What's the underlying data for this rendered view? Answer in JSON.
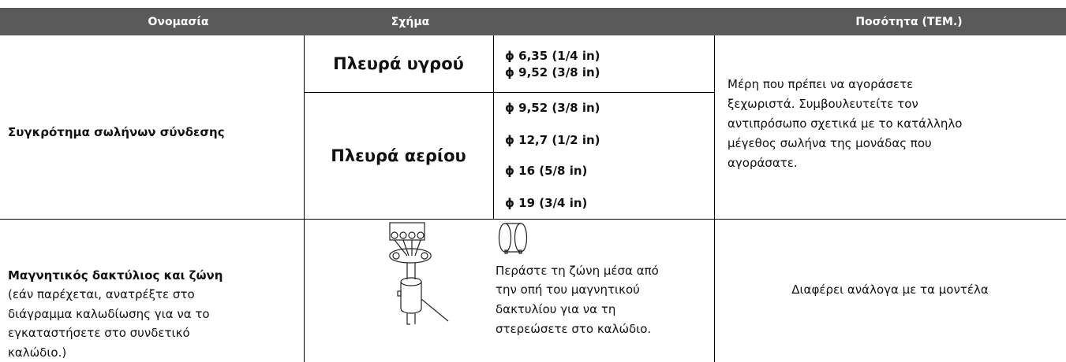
{
  "table": {
    "headers": [
      "Ονομασία",
      "Σχήμα",
      "Ποσότητα (ΤΕΜ.)"
    ],
    "rows": [
      {
        "name": "Συγκρότημα σωλήνων σύνδεσης",
        "groups": [
          {
            "label": "Πλευρά υγρού",
            "sizes": [
              "ϕ 6,35 (1/4 in)",
              "ϕ 9,52 (3/8 in)"
            ]
          },
          {
            "label": "Πλευρά αερίου",
            "sizes": [
              "ϕ 9,52 (3/8 in)",
              "ϕ 12,7 (1/2 in)",
              "ϕ 16 (5/8 in)",
              "ϕ 19 (3/4 in)"
            ]
          }
        ],
        "quantity": [
          "Μέρη που πρέπει να αγοράσετε",
          "ξεχωριστά. Συμβουλευτείτε τον",
          "αντιπρόσωπο σχετικά με το κατάλληλο",
          "μέγεθος σωλήνα της μονάδας που",
          "αγοράσατε."
        ]
      },
      {
        "name": "Μαγνητικός δακτύλιος και ζώνη",
        "note": [
          "(εάν παρέχεται, ανατρέξτε στο",
          "διάγραμμα καλωδίωσης για να το",
          "εγκαταστήσετε στο συνδετικό",
          "καλώδιο.)"
        ],
        "instruction": [
          "Περάστε τη ζώνη μέσα από",
          "την οπή του μαγνητικού",
          "δακτυλίου για να τη",
          "στερεώσετε στο καλώδιο."
        ],
        "quantity": "Διαφέρει ανάλογα με τα μοντέλα"
      }
    ]
  }
}
